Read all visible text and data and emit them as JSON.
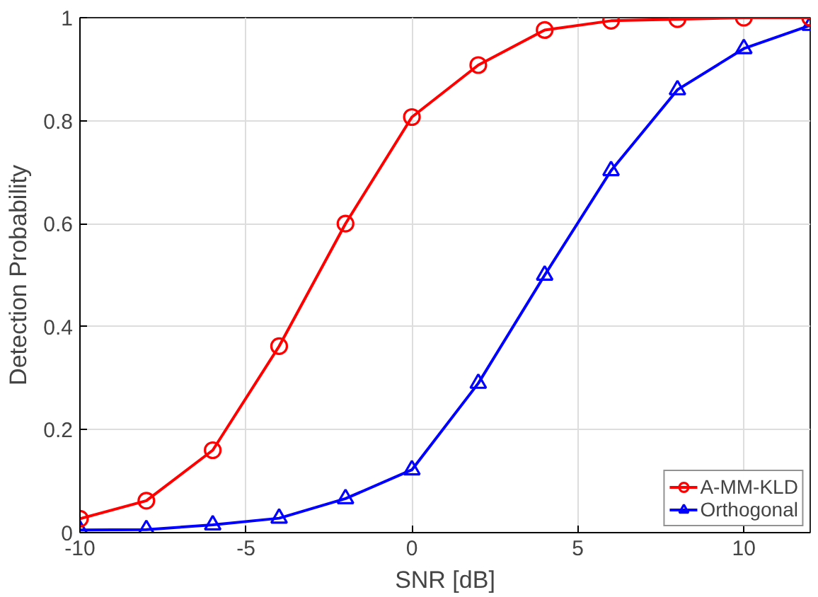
{
  "chart_data": {
    "type": "line",
    "xlabel": "SNR [dB]",
    "ylabel": "Detection Probability",
    "x": [
      -10,
      -8,
      -6,
      -4,
      -2,
      0,
      2,
      4,
      6,
      8,
      10,
      12
    ],
    "series": [
      {
        "name": "A-MM-KLD",
        "color": "#ff0000",
        "marker": "circle",
        "values": [
          0.027,
          0.062,
          0.16,
          0.362,
          0.6,
          0.807,
          0.908,
          0.976,
          0.994,
          0.997,
          1.0,
          1.0
        ]
      },
      {
        "name": "Orthogonal",
        "color": "#0000ff",
        "marker": "triangle",
        "values": [
          0.005,
          0.006,
          0.015,
          0.028,
          0.066,
          0.122,
          0.29,
          0.5,
          0.703,
          0.86,
          0.94,
          0.985
        ]
      }
    ],
    "xlim": [
      -10,
      12
    ],
    "xticks": [
      -10,
      -5,
      0,
      5,
      10
    ],
    "ylim": [
      0,
      1
    ],
    "yticks": [
      0,
      0.2,
      0.4,
      0.6,
      0.8,
      1
    ],
    "grid": true,
    "legend": "bottom right",
    "line_style": "solid"
  }
}
